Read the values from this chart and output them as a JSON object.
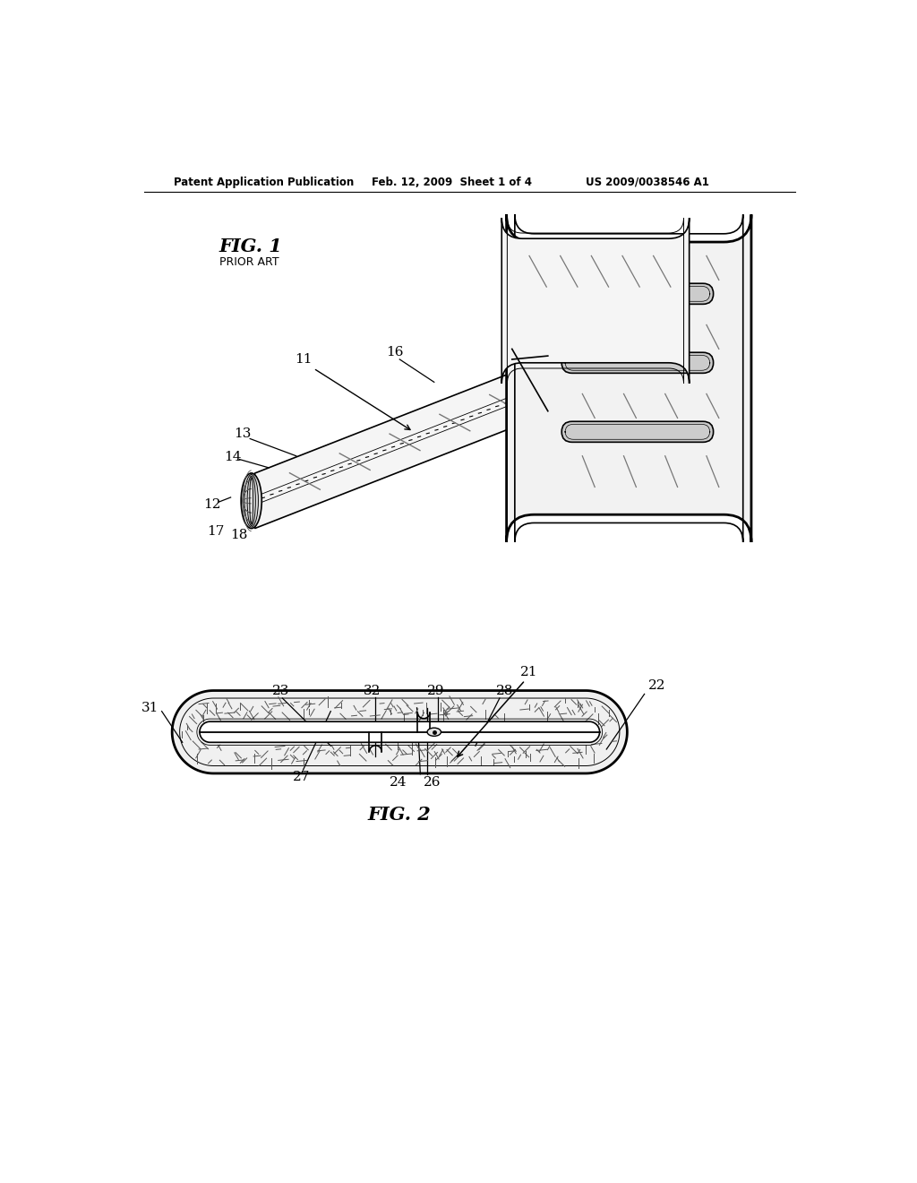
{
  "bg_color": "#ffffff",
  "header_left": "Patent Application Publication",
  "header_center": "Feb. 12, 2009  Sheet 1 of 4",
  "header_right": "US 2009/0038546 A1",
  "fig1_label": "FIG. 1",
  "fig1_sublabel": "PRIOR ART",
  "fig2_label": "FIG. 2",
  "lc": "#000000",
  "gray_light": "#f0f0f0",
  "gray_med": "#d8d8d8",
  "gray_dark": "#888888"
}
